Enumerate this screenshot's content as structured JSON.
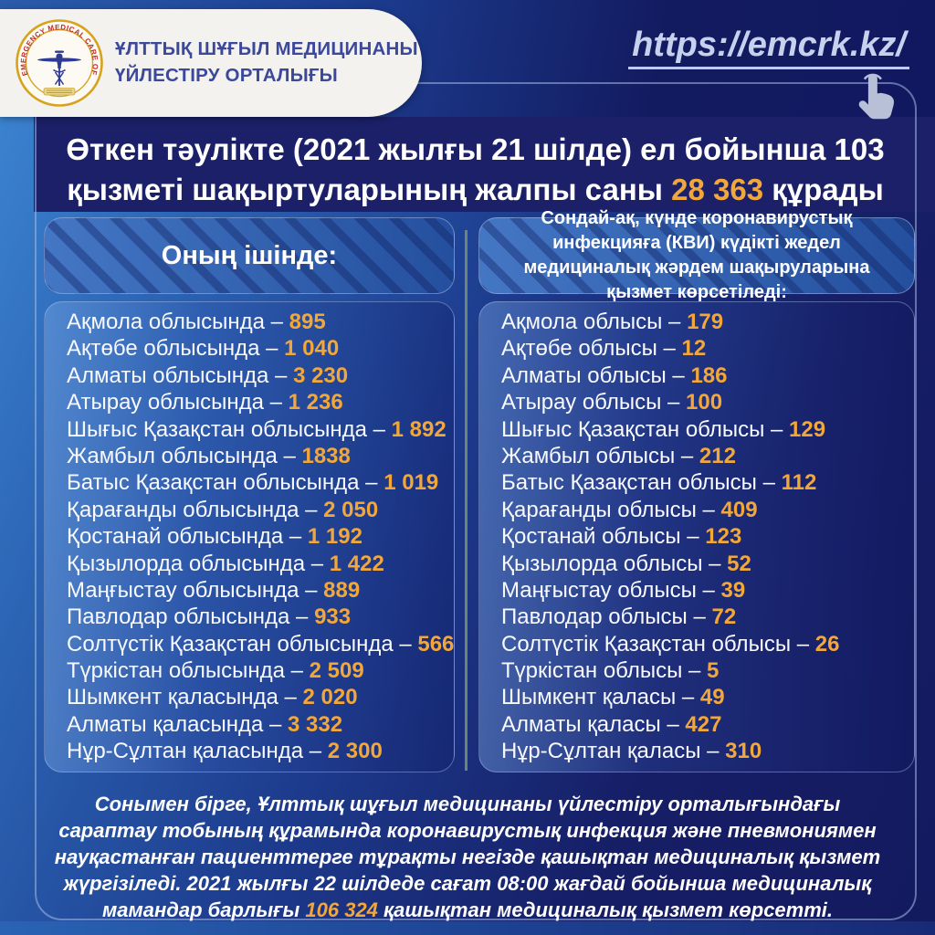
{
  "colors": {
    "accent_number": "#F2A73B",
    "background_navy": "#141A5E",
    "light_blue": "#2F74C4",
    "divider_olive": "#74906F",
    "banner_bg": "#F3F2EF",
    "banner_text": "#3C4899",
    "url_text": "#C7D1EE"
  },
  "header": {
    "logo_text": "EMERGENCY MEDICAL CARE OF KAZAKHSTAN",
    "org_name_line1": "ҰЛТТЫҚ ШҰҒЫЛ МЕДИЦИНАНЫ",
    "org_name_line2": "ҮЙЛЕСТІРУ ОРТАЛЫҒЫ",
    "url": "https://emcrk.kz/"
  },
  "title": {
    "line1": "Өткен тәулікте (2021 жылғы 21 шілде) ел бойынша 103",
    "line2_prefix": "қызметі шақыртуларының жалпы саны ",
    "total": "28 363",
    "line2_suffix": " құрады"
  },
  "left_column": {
    "header": "Оның ішінде:",
    "items": [
      {
        "region": "Ақмола облысында",
        "value": "895"
      },
      {
        "region": "Ақтөбе облысында",
        "value": "1 040"
      },
      {
        "region": "Алматы облысында",
        "value": "3 230"
      },
      {
        "region": "Атырау облысында",
        "value": "1 236"
      },
      {
        "region": "Шығыс Қазақстан облысында",
        "value": "1 892"
      },
      {
        "region": "Жамбыл облысында",
        "value": "1838"
      },
      {
        "region": "Батыс Қазақстан облысында",
        "value": "1 019"
      },
      {
        "region": "Қарағанды облысында",
        "value": "2 050"
      },
      {
        "region": "Қостанай облысында",
        "value": "1 192"
      },
      {
        "region": "Қызылорда облысында",
        "value": "1 422"
      },
      {
        "region": "Маңғыстау облысында",
        "value": "889"
      },
      {
        "region": "Павлодар облысында",
        "value": "933"
      },
      {
        "region": "Солтүстік Қазақстан облысында",
        "value": "566"
      },
      {
        "region": "Түркістан облысында",
        "value": "2 509"
      },
      {
        "region": "Шымкент қаласында",
        "value": "2 020"
      },
      {
        "region": "Алматы қаласында",
        "value": "3 332"
      },
      {
        "region": "Нұр-Сұлтан қаласында",
        "value": "2 300"
      }
    ]
  },
  "right_column": {
    "header": "Сондай-ақ, күнде коронавирустық инфекцияға (КВИ)  күдікті жедел медициналық жәрдем шақыруларына қызмет көрсетіледі:",
    "items": [
      {
        "region": "Ақмола облысы",
        "value": "179"
      },
      {
        "region": "Ақтөбе облысы",
        "value": "12"
      },
      {
        "region": "Алматы облысы",
        "value": "186"
      },
      {
        "region": "Атырау облысы",
        "value": "100"
      },
      {
        "region": "Шығыс Қазақстан облысы",
        "value": "129"
      },
      {
        "region": "Жамбыл облысы",
        "value": "212"
      },
      {
        "region": "Батыс Қазақстан облысы",
        "value": "112"
      },
      {
        "region": "Қарағанды облысы",
        "value": "409"
      },
      {
        "region": "Қостанай облысы",
        "value": "123"
      },
      {
        "region": "Қызылорда облысы",
        "value": "52"
      },
      {
        "region": "Маңғыстау облысы",
        "value": "39"
      },
      {
        "region": "Павлодар облысы",
        "value": "72"
      },
      {
        "region": "Солтүстік Қазақстан облысы",
        "value": "26"
      },
      {
        "region": "Түркістан облысы",
        "value": "5"
      },
      {
        "region": "Шымкент қаласы",
        "value": "49"
      },
      {
        "region": "Алматы қаласы",
        "value": "427"
      },
      {
        "region": "Нұр-Сұлтан қаласы",
        "value": "310"
      }
    ]
  },
  "footer": {
    "text_before": "Сонымен бірге, Ұлттық шұғыл медицинаны үйлестіру орталығындағы сараптау тобының құрамында коронавирустық инфекция және пневмониямен науқастанған пациенттерге тұрақты негізде қашықтан медициналық қызмет жүргізіледі. 2021 жылғы 22 шілдеде сағат 08:00 жағдай бойынша медициналық мамандар барлығы ",
    "total": "106 324",
    "text_after": "  қашықтан медициналық қызмет көрсетті."
  }
}
